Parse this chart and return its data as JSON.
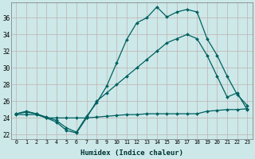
{
  "xlabel": "Humidex (Indice chaleur)",
  "background_color": "#cce8e8",
  "grid_color": "#c0b0b0",
  "line_color": "#006060",
  "xlim": [
    -0.5,
    23.5
  ],
  "ylim": [
    21.5,
    37.8
  ],
  "yticks": [
    22,
    24,
    26,
    28,
    30,
    32,
    34,
    36
  ],
  "xticks": [
    0,
    1,
    2,
    3,
    4,
    5,
    6,
    7,
    8,
    9,
    10,
    11,
    12,
    13,
    14,
    15,
    16,
    17,
    18,
    19,
    20,
    21,
    22,
    23
  ],
  "line1_x": [
    0,
    1,
    2,
    3,
    4,
    5,
    6,
    7,
    8,
    9,
    10,
    11,
    12,
    13,
    14,
    15,
    16,
    17,
    18,
    19,
    20,
    21,
    22,
    23
  ],
  "line1_y": [
    24.5,
    24.8,
    24.5,
    24.1,
    23.7,
    22.8,
    22.3,
    24.2,
    25.8,
    27.8,
    30.6,
    33.4,
    35.4,
    36.0,
    37.3,
    36.1,
    36.7,
    37.0,
    36.7,
    33.5,
    31.5,
    29.0,
    26.8,
    25.5
  ],
  "line2_x": [
    0,
    1,
    2,
    3,
    4,
    5,
    6,
    7,
    8,
    9,
    10,
    11,
    12,
    13,
    14,
    15,
    16,
    17,
    18,
    19,
    20,
    21,
    22,
    23
  ],
  "line2_y": [
    24.5,
    24.7,
    24.5,
    24.0,
    23.5,
    22.5,
    22.2,
    24.0,
    26.0,
    27.0,
    28.0,
    29.0,
    30.0,
    31.0,
    32.0,
    33.0,
    33.5,
    34.0,
    33.5,
    31.5,
    29.0,
    26.5,
    27.0,
    25.0
  ],
  "line3_x": [
    0,
    1,
    2,
    3,
    4,
    5,
    6,
    7,
    8,
    9,
    10,
    11,
    12,
    13,
    14,
    15,
    16,
    17,
    18,
    19,
    20,
    21,
    22,
    23
  ],
  "line3_y": [
    24.4,
    24.4,
    24.4,
    24.0,
    24.0,
    24.0,
    24.0,
    24.0,
    24.1,
    24.2,
    24.3,
    24.4,
    24.4,
    24.5,
    24.5,
    24.5,
    24.5,
    24.5,
    24.5,
    24.8,
    24.9,
    25.0,
    25.0,
    25.1
  ]
}
